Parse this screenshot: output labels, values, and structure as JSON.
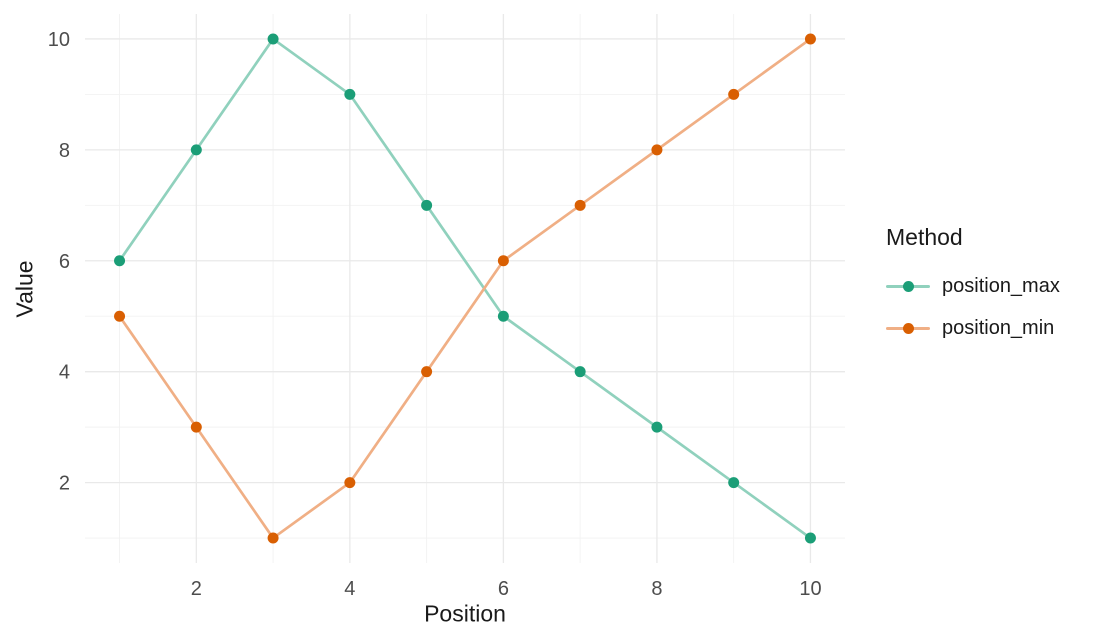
{
  "figure": {
    "background": "#FFFFFF"
  },
  "chart_data": {
    "type": "line",
    "title": "",
    "xlabel": "Position",
    "ylabel": "Value",
    "legend_title": "Method",
    "legend_position": "right",
    "x": [
      1,
      2,
      3,
      4,
      5,
      6,
      7,
      8,
      9,
      10
    ],
    "series": [
      {
        "name": "position_max",
        "values": [
          6,
          8,
          10,
          9,
          7,
          5,
          4,
          3,
          2,
          1
        ],
        "point_color": "#1B9E77",
        "line_color": "#90D1BD"
      },
      {
        "name": "position_min",
        "values": [
          5,
          3,
          1,
          2,
          4,
          6,
          7,
          8,
          9,
          10
        ],
        "point_color": "#D95F02",
        "line_color": "#F0AF85"
      }
    ],
    "x_ticks": [
      2,
      4,
      6,
      8,
      10
    ],
    "y_ticks": [
      2,
      4,
      6,
      8,
      10
    ],
    "x_minor_ticks": [
      1,
      3,
      5,
      7,
      9
    ],
    "y_minor_ticks": [
      1,
      3,
      5,
      7,
      9
    ],
    "xlim": [
      0.55,
      10.45
    ],
    "ylim": [
      0.55,
      10.45
    ],
    "grid": "major+minor",
    "colors": {
      "grid_major": "#E9E9E9",
      "grid_minor": "#F2F2F2",
      "tick_label": "#4D4D4D",
      "text": "#1A1A1A"
    }
  }
}
